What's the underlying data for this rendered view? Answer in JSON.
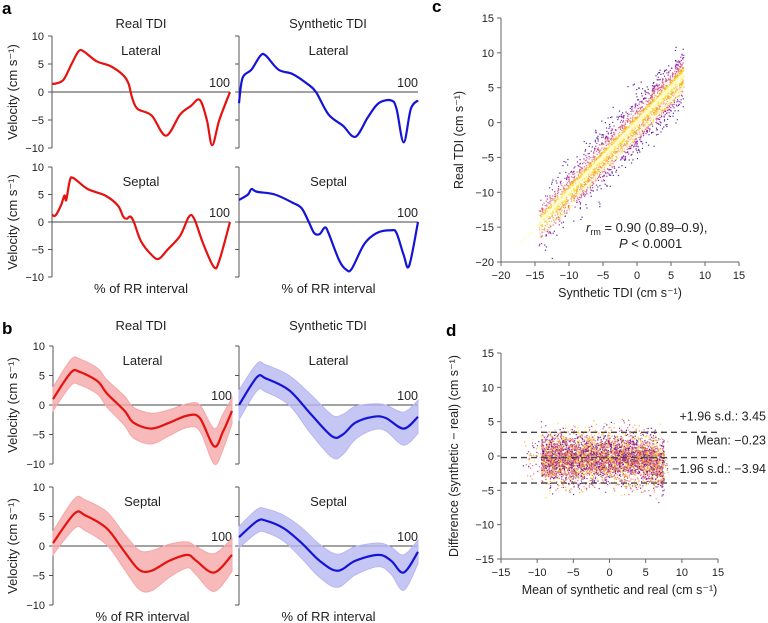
{
  "figure": {
    "panel_labels": [
      "a",
      "b",
      "c",
      "d"
    ],
    "column_titles": [
      "Real TDI",
      "Synthetic TDI"
    ]
  },
  "chart_data": [
    {
      "panel": "a",
      "type": "line",
      "column": "Real TDI",
      "title": "Lateral",
      "xlabel": "",
      "ylabel": "Velocity (cm s⁻¹)",
      "x_end_label": "100",
      "xlim": [
        0,
        100
      ],
      "ylim": [
        -10,
        10
      ],
      "yticks": [
        10,
        5,
        0,
        -5,
        -10
      ],
      "yticklabels": [
        "10",
        "5",
        "0",
        "−5",
        "−10"
      ],
      "color": "#e5120f",
      "series": [
        {
          "x": [
            0,
            2,
            6.5,
            11,
            15,
            18,
            25,
            33,
            40,
            43,
            45,
            48,
            56,
            64,
            72,
            78,
            83,
            87,
            90,
            94,
            100
          ],
          "y": [
            1.5,
            1.5,
            2.2,
            5,
            7.3,
            7.2,
            5.5,
            4.6,
            3,
            1.5,
            -1,
            -3,
            -4.2,
            -7.8,
            -4,
            -2.5,
            -1.4,
            -5,
            -9.5,
            -5,
            0
          ]
        }
      ]
    },
    {
      "panel": "a",
      "type": "line",
      "column": "Synthetic TDI",
      "title": "Lateral",
      "xlabel": "",
      "ylabel": "",
      "x_end_label": "100",
      "xlim": [
        0,
        100
      ],
      "ylim": [
        -10,
        10
      ],
      "yticks": [
        10,
        5,
        0,
        -5,
        -10
      ],
      "yticklabels": [],
      "color": "#1414d8",
      "series": [
        {
          "x": [
            0,
            2,
            7,
            12,
            15,
            22,
            30,
            38,
            43,
            50,
            58,
            65,
            72,
            78,
            85,
            88,
            92,
            96,
            100
          ],
          "y": [
            -2,
            2.5,
            4,
            6.5,
            6.5,
            4,
            3.2,
            1.5,
            0,
            -4,
            -6,
            -8,
            -4.5,
            -2,
            -1.5,
            -3,
            -9,
            -3,
            -1.5
          ]
        }
      ]
    },
    {
      "panel": "a",
      "type": "line",
      "column": "Real TDI",
      "title": "Septal",
      "xlabel": "% of RR interval",
      "ylabel": "Velocity (cm s⁻¹)",
      "x_end_label": "100",
      "xlim": [
        0,
        100
      ],
      "ylim": [
        -10,
        10
      ],
      "yticks": [
        10,
        5,
        0,
        -5,
        -10
      ],
      "yticklabels": [
        "10",
        "5",
        "0",
        "−5",
        "−10"
      ],
      "color": "#e5120f",
      "series": [
        {
          "x": [
            0,
            2,
            5,
            7,
            8,
            10,
            12,
            20,
            30,
            37,
            40,
            42,
            44,
            46,
            50,
            56,
            60,
            65,
            72,
            77,
            80,
            85,
            91,
            94,
            100
          ],
          "y": [
            1.3,
            1.2,
            3,
            4.8,
            4,
            7.5,
            8,
            6,
            4.8,
            3,
            1,
            0.6,
            1,
            0,
            -3.5,
            -6,
            -6.7,
            -5,
            -2.5,
            1,
            0.5,
            -4,
            -8.2,
            -7,
            0
          ]
        }
      ]
    },
    {
      "panel": "a",
      "type": "line",
      "column": "Synthetic TDI",
      "title": "Septal",
      "xlabel": "% of RR interval",
      "ylabel": "",
      "x_end_label": "100",
      "xlim": [
        0,
        100
      ],
      "ylim": [
        -10,
        10
      ],
      "yticks": [
        10,
        5,
        0,
        -5,
        -10
      ],
      "yticklabels": [],
      "color": "#1414d8",
      "series": [
        {
          "x": [
            0,
            5,
            7,
            10,
            20,
            30,
            35,
            39,
            42,
            45,
            48,
            50,
            56,
            60,
            63,
            70,
            77,
            85,
            88,
            92,
            95,
            100
          ],
          "y": [
            4,
            5,
            6,
            5.5,
            5,
            3.5,
            2.5,
            0,
            -2,
            -2.2,
            -1,
            -2,
            -7,
            -8.7,
            -8.5,
            -4,
            -2,
            -1.5,
            -2,
            -6,
            -8,
            0
          ]
        }
      ]
    },
    {
      "panel": "b",
      "type": "line",
      "column": "Real TDI",
      "title": "Lateral",
      "xlabel": "",
      "ylabel": "Velocity (cm s⁻¹)",
      "x_end_label": "100",
      "xlim": [
        0,
        100
      ],
      "ylim": [
        -10,
        10
      ],
      "yticks": [
        10,
        5,
        0,
        -5,
        -10
      ],
      "yticklabels": [
        "10",
        "5",
        "0",
        "−5",
        "−10"
      ],
      "color": "#e5120f",
      "band_color": "#f5a8a8",
      "series": [
        {
          "x": [
            0,
            10,
            15,
            25,
            30,
            40,
            45,
            55,
            65,
            75,
            82,
            90,
            95,
            100
          ],
          "y": [
            1,
            5.5,
            5.6,
            4,
            2,
            -1,
            -3,
            -4,
            -3,
            -1.8,
            -2.2,
            -7,
            -4.5,
            -1
          ],
          "sd": [
            2,
            2.2,
            2.2,
            2.2,
            2.3,
            2.5,
            2.6,
            2.6,
            2.2,
            2,
            2.2,
            3,
            3,
            2.2
          ]
        }
      ]
    },
    {
      "panel": "b",
      "type": "line",
      "column": "Synthetic TDI",
      "title": "Lateral",
      "xlabel": "",
      "ylabel": "",
      "x_end_label": "100",
      "xlim": [
        0,
        100
      ],
      "ylim": [
        -10,
        10
      ],
      "yticks": [
        10,
        5,
        0,
        -5,
        -10
      ],
      "yticklabels": [],
      "color": "#1414d8",
      "band_color": "#b8b8f2",
      "series": [
        {
          "x": [
            0,
            10,
            15,
            28,
            40,
            52,
            58,
            65,
            75,
            82,
            92,
            100
          ],
          "y": [
            0,
            4.7,
            4.5,
            2.5,
            -1.5,
            -5.3,
            -5,
            -3,
            -2,
            -2.2,
            -4,
            -2
          ],
          "sd": [
            2.5,
            2.3,
            2.3,
            2.5,
            3.3,
            3.6,
            3.4,
            2.8,
            2.2,
            2.2,
            2.8,
            2.8
          ]
        }
      ]
    },
    {
      "panel": "b",
      "type": "line",
      "column": "Real TDI",
      "title": "Septal",
      "xlabel": "% of RR interval",
      "ylabel": "Velocity (cm s⁻¹)",
      "x_end_label": "100",
      "xlim": [
        0,
        100
      ],
      "ylim": [
        -10,
        10
      ],
      "yticks": [
        10,
        5,
        0,
        -5,
        -10
      ],
      "yticklabels": [
        "10",
        "5",
        "0",
        "−5",
        "−10"
      ],
      "color": "#e5120f",
      "band_color": "#f5a8a8",
      "series": [
        {
          "x": [
            0,
            12,
            18,
            30,
            40,
            48,
            55,
            65,
            75,
            80,
            90,
            100
          ],
          "y": [
            0.5,
            5.5,
            5.2,
            3,
            -1,
            -4,
            -4.2,
            -2.5,
            -1.5,
            -2.5,
            -4.5,
            -1.5
          ],
          "sd": [
            2,
            2.5,
            2.6,
            2.8,
            3,
            3.3,
            3.4,
            2.8,
            2.2,
            2.4,
            3.2,
            2.8
          ]
        }
      ]
    },
    {
      "panel": "b",
      "type": "line",
      "column": "Synthetic TDI",
      "title": "Septal",
      "xlabel": "% of RR interval",
      "ylabel": "",
      "x_end_label": "100",
      "xlim": [
        0,
        100
      ],
      "ylim": [
        -10,
        10
      ],
      "yticks": [
        10,
        5,
        0,
        -5,
        -10
      ],
      "yticklabels": [],
      "color": "#1414d8",
      "band_color": "#b8b8f2",
      "series": [
        {
          "x": [
            0,
            10,
            15,
            25,
            35,
            45,
            55,
            65,
            78,
            85,
            92,
            100
          ],
          "y": [
            1.5,
            4.2,
            4.3,
            3,
            0.5,
            -2.5,
            -4.2,
            -2.5,
            -1.5,
            -2.5,
            -4.5,
            -1
          ],
          "sd": [
            1.8,
            2,
            2,
            2.2,
            2.6,
            2.8,
            2.8,
            2.4,
            2,
            2.3,
            3,
            2
          ]
        }
      ]
    },
    {
      "panel": "c",
      "type": "scatter",
      "title": "",
      "xlabel": "Synthetic TDI (cm s⁻¹)",
      "ylabel": "Real TDI (cm s⁻¹)",
      "xlim": [
        -20,
        15
      ],
      "ylim": [
        -20,
        15
      ],
      "xticks": [
        -20,
        -15,
        -10,
        -5,
        0,
        5,
        10,
        15
      ],
      "xticklabels": [
        "−20",
        "−15",
        "−10",
        "−5",
        "0",
        "5",
        "10",
        "15"
      ],
      "yticks": [
        15,
        10,
        5,
        0,
        -5,
        -10,
        -15,
        -20
      ],
      "yticklabels": [
        "15",
        "10",
        "5",
        "0",
        "−5",
        "−10",
        "−15",
        "−20"
      ],
      "colormap": [
        "#fffbd0",
        "#f9e21e",
        "#f89a3c",
        "#d9507a",
        "#8f0ea4",
        "#3b0690"
      ],
      "x_range_of_points": [
        -17.5,
        7.5
      ],
      "trend": "y ≈ x",
      "annotation": {
        "r_symbol": "r",
        "r_subscript": "rm",
        "r_text": " = 0.90 (0.89–0.9),",
        "p_symbol": "P",
        "p_text": " < 0.0001"
      }
    },
    {
      "panel": "d",
      "type": "scatter",
      "title": "",
      "xlabel": "Mean of synthetic and real (cm s⁻¹)",
      "ylabel": "Difference (synthetic − real) (cm s⁻¹)",
      "xlim": [
        -15,
        15
      ],
      "ylim": [
        -15,
        15
      ],
      "xticks": [
        -15,
        -10,
        -5,
        0,
        5,
        10,
        15
      ],
      "xticklabels": [
        "−15",
        "−10",
        "−5",
        "0",
        "5",
        "10",
        "15"
      ],
      "yticks": [
        15,
        10,
        5,
        0,
        -5,
        -10,
        -15
      ],
      "yticklabels": [
        "15",
        "10",
        "5",
        "0",
        "−5",
        "−10",
        "−15"
      ],
      "colormap": [
        "#fffbd0",
        "#f9e21e",
        "#f89a3c",
        "#d9507a",
        "#8f0ea4",
        "#3b0690"
      ],
      "x_range_of_points": [
        -10,
        8
      ],
      "hlines": [
        {
          "value": 3.45,
          "label": "+1.96 s.d.: 3.45"
        },
        {
          "value": -0.23,
          "label": "Mean: −0.23"
        },
        {
          "value": -3.94,
          "label": "−1.96 s.d.: −3.94"
        }
      ]
    }
  ]
}
